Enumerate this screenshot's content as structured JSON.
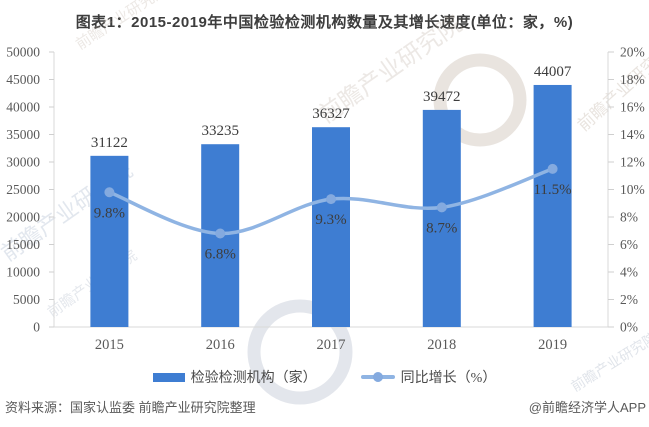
{
  "title": "图表1：2015-2019年中国检验检测机构数量及其增长速度(单位：家，%)",
  "chart_data": {
    "type": "bar-line-combo",
    "title": "图表1：2015-2019年中国检验检测机构数量及其增长速度(单位：家，%)",
    "categories": [
      "2015",
      "2016",
      "2017",
      "2018",
      "2019"
    ],
    "series": [
      {
        "name": "检验检测机构（家）",
        "type": "bar",
        "axis": "left",
        "color": "#3e7dd2",
        "values": [
          31122,
          33235,
          36327,
          39472,
          44007
        ],
        "labels": [
          "31122",
          "33235",
          "36327",
          "39472",
          "44007"
        ]
      },
      {
        "name": "同比增长（%）",
        "type": "line",
        "axis": "right",
        "color": "#8fb4e3",
        "marker_color": "#84aadf",
        "values": [
          9.8,
          6.8,
          9.3,
          8.7,
          11.5
        ],
        "labels": [
          "9.8%",
          "6.8%",
          "9.3%",
          "8.7%",
          "11.5%"
        ]
      }
    ],
    "left_axis": {
      "min": 0,
      "max": 50000,
      "step": 5000,
      "ticks": [
        "0",
        "5000",
        "10000",
        "15000",
        "20000",
        "25000",
        "30000",
        "35000",
        "40000",
        "45000",
        "50000"
      ]
    },
    "right_axis": {
      "min": 0,
      "max": 20,
      "step": 2,
      "ticks": [
        "0%",
        "2%",
        "4%",
        "6%",
        "8%",
        "10%",
        "12%",
        "14%",
        "16%",
        "18%",
        "20%"
      ]
    },
    "grid": false,
    "legend_position": "bottom",
    "colors": {
      "axis_line": "#d9d9d9",
      "tick": "#cfcfcf",
      "axis_text": "#595959",
      "data_label": "#3d3d3d",
      "title_text": "#3d3d3d"
    }
  },
  "legend": {
    "bar_label": "检验检测机构（家）",
    "line_label": "同比增长（%）"
  },
  "footer": {
    "source": "资料来源：国家认监委 前瞻产业研究院整理",
    "credit": "@前瞻经济学人APP"
  },
  "watermark_text": "前瞻产业研究院"
}
